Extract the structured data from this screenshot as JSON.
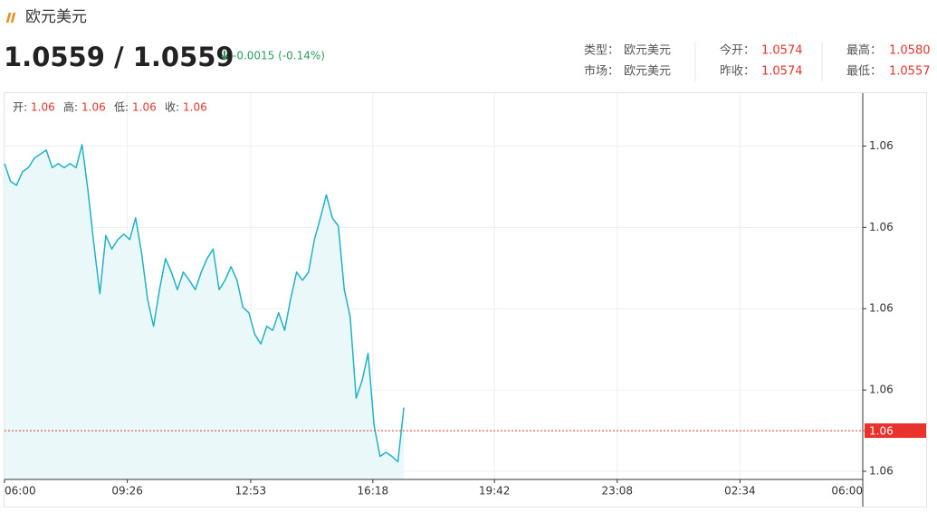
{
  "header": {
    "title": "欧元美元",
    "price": "1.0559 / 1.0559",
    "change": "-0.0015 (-0.14%)",
    "info": [
      [
        {
          "label": "类型：",
          "value": "欧元美元"
        },
        {
          "label": "今开：",
          "value": "1.0574"
        },
        {
          "label": "最高：",
          "value": "1.0580"
        }
      ],
      [
        {
          "label": "市场：",
          "value": "欧元美元"
        },
        {
          "label": "昨收：",
          "value": "1.0574"
        },
        {
          "label": "最低：",
          "value": "1.0557"
        }
      ]
    ]
  },
  "ohlc": [
    {
      "label": "开:",
      "value": "1.06"
    },
    {
      "label": "高:",
      "value": "1.06"
    },
    {
      "label": "低:",
      "value": "1.06"
    },
    {
      "label": "收:",
      "value": "1.06"
    }
  ],
  "chart_data": {
    "type": "line",
    "color": "#1fb2c9",
    "area_color": "#eaf8fa",
    "grid": true,
    "x": [
      "06:00",
      "06:10",
      "06:20",
      "06:30",
      "06:40",
      "06:50",
      "07:00",
      "07:10",
      "07:20",
      "07:30",
      "07:40",
      "07:50",
      "08:00",
      "08:10",
      "08:20",
      "08:30",
      "08:40",
      "08:50",
      "09:00",
      "09:10",
      "09:20",
      "09:30",
      "09:40",
      "09:50",
      "10:00",
      "10:10",
      "10:20",
      "10:30",
      "10:40",
      "10:50",
      "11:00",
      "11:10",
      "11:20",
      "11:30",
      "11:40",
      "11:50",
      "12:00",
      "12:10",
      "12:20",
      "12:30",
      "12:40",
      "12:50",
      "13:00",
      "13:10",
      "13:20",
      "13:30",
      "13:40",
      "13:50",
      "14:00",
      "14:10",
      "14:20",
      "14:30",
      "14:40",
      "14:50",
      "15:00",
      "15:10",
      "15:20",
      "15:30",
      "15:40",
      "15:50",
      "16:00",
      "16:10",
      "16:20",
      "16:30",
      "16:40",
      "16:50",
      "17:00",
      "17:10"
    ],
    "values": [
      1.05787,
      1.05774,
      1.05771,
      1.05781,
      1.05784,
      1.05791,
      1.05794,
      1.05797,
      1.05784,
      1.05787,
      1.05784,
      1.05787,
      1.05784,
      1.05801,
      1.05767,
      1.05727,
      1.05691,
      1.05734,
      1.05724,
      1.05731,
      1.05735,
      1.05731,
      1.05747,
      1.05721,
      1.05687,
      1.05667,
      1.05694,
      1.05717,
      1.05707,
      1.05694,
      1.05707,
      1.05701,
      1.05694,
      1.05707,
      1.05717,
      1.05724,
      1.05694,
      1.05701,
      1.05711,
      1.05701,
      1.05681,
      1.05677,
      1.05661,
      1.05654,
      1.05667,
      1.05664,
      1.05677,
      1.05664,
      1.05687,
      1.05707,
      1.05701,
      1.05707,
      1.05731,
      1.05747,
      1.05764,
      1.05747,
      1.05741,
      1.05694,
      1.05674,
      1.05614,
      1.05627,
      1.05647,
      1.05594,
      1.05571,
      1.05574,
      1.05571,
      1.05567,
      1.05607
    ],
    "xticks": [
      "06:00",
      "09:26",
      "12:53",
      "16:18",
      "19:42",
      "23:08",
      "02:34",
      "06:00"
    ],
    "ylim": [
      1.05554,
      1.05839
    ],
    "yticks": [
      {
        "value": 1.058,
        "label": "1.06"
      },
      {
        "value": 1.0574,
        "label": "1.06"
      },
      {
        "value": 1.0568,
        "label": "1.06"
      },
      {
        "value": 1.0562,
        "label": "1.06"
      },
      {
        "value": 1.0556,
        "label": "1.06"
      }
    ],
    "current": {
      "value": 1.0559,
      "label": "1.06"
    },
    "current_color": "#e8322b"
  }
}
